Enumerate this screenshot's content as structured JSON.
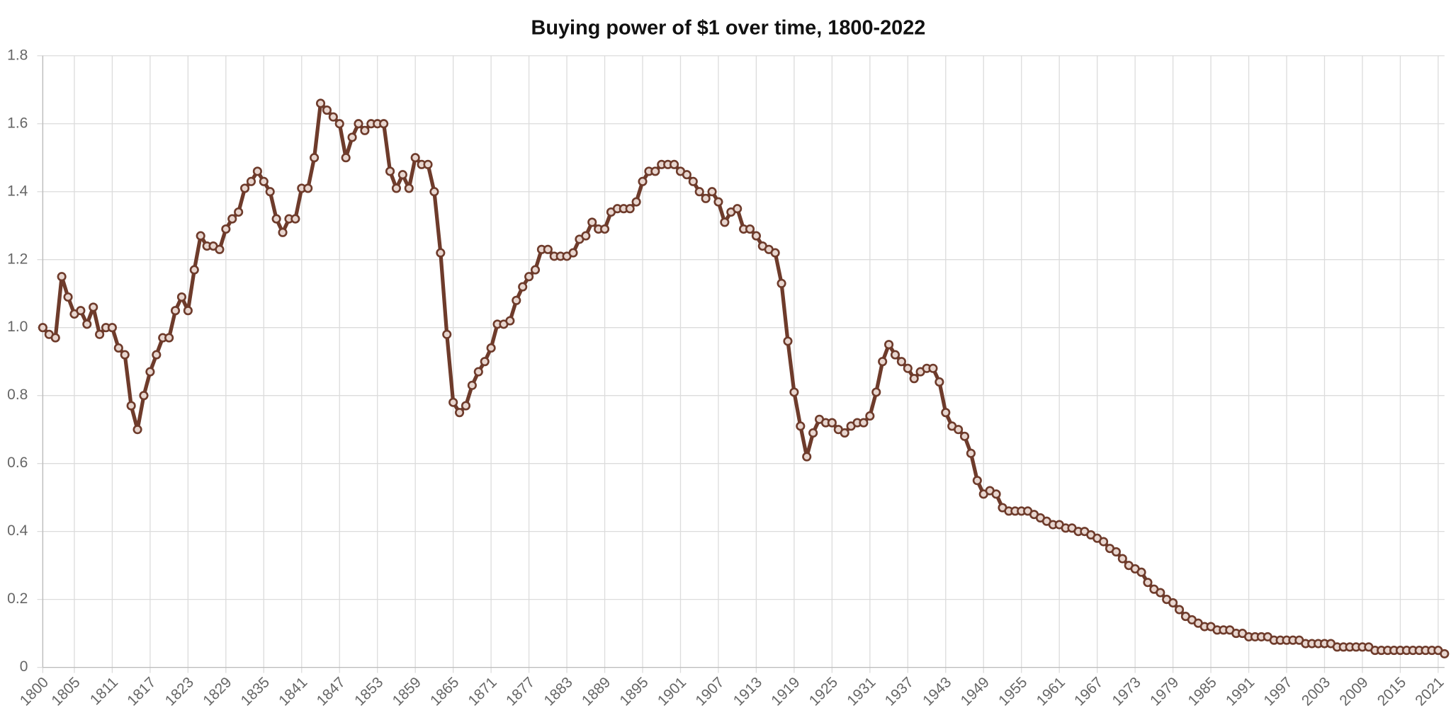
{
  "chart_data": {
    "type": "line",
    "title": "Buying power of $1 over time, 1800-2022",
    "x": [
      1800,
      1801,
      1802,
      1803,
      1804,
      1805,
      1806,
      1807,
      1808,
      1809,
      1810,
      1811,
      1812,
      1813,
      1814,
      1815,
      1816,
      1817,
      1818,
      1819,
      1820,
      1821,
      1822,
      1823,
      1824,
      1825,
      1826,
      1827,
      1828,
      1829,
      1830,
      1831,
      1832,
      1833,
      1834,
      1835,
      1836,
      1837,
      1838,
      1839,
      1840,
      1841,
      1842,
      1843,
      1844,
      1845,
      1846,
      1847,
      1848,
      1849,
      1850,
      1851,
      1852,
      1853,
      1854,
      1855,
      1856,
      1857,
      1858,
      1859,
      1860,
      1861,
      1862,
      1863,
      1864,
      1865,
      1866,
      1867,
      1868,
      1869,
      1870,
      1871,
      1872,
      1873,
      1874,
      1875,
      1876,
      1877,
      1878,
      1879,
      1880,
      1881,
      1882,
      1883,
      1884,
      1885,
      1886,
      1887,
      1888,
      1889,
      1890,
      1891,
      1892,
      1893,
      1894,
      1895,
      1896,
      1897,
      1898,
      1899,
      1900,
      1901,
      1902,
      1903,
      1904,
      1905,
      1906,
      1907,
      1908,
      1909,
      1910,
      1911,
      1912,
      1913,
      1914,
      1915,
      1916,
      1917,
      1918,
      1919,
      1920,
      1921,
      1922,
      1923,
      1924,
      1925,
      1926,
      1927,
      1928,
      1929,
      1930,
      1931,
      1932,
      1933,
      1934,
      1935,
      1936,
      1937,
      1938,
      1939,
      1940,
      1941,
      1942,
      1943,
      1944,
      1945,
      1946,
      1947,
      1948,
      1949,
      1950,
      1951,
      1952,
      1953,
      1954,
      1955,
      1956,
      1957,
      1958,
      1959,
      1960,
      1961,
      1962,
      1963,
      1964,
      1965,
      1966,
      1967,
      1968,
      1969,
      1970,
      1971,
      1972,
      1973,
      1974,
      1975,
      1976,
      1977,
      1978,
      1979,
      1980,
      1981,
      1982,
      1983,
      1984,
      1985,
      1986,
      1987,
      1988,
      1989,
      1990,
      1991,
      1992,
      1993,
      1994,
      1995,
      1996,
      1997,
      1998,
      1999,
      2000,
      2001,
      2002,
      2003,
      2004,
      2005,
      2006,
      2007,
      2008,
      2009,
      2010,
      2011,
      2012,
      2013,
      2014,
      2015,
      2016,
      2017,
      2018,
      2019,
      2020,
      2021,
      2022
    ],
    "series": [
      {
        "name": "Buying power",
        "color": "#6e3b2b",
        "values": [
          1.0,
          0.98,
          0.97,
          1.15,
          1.09,
          1.04,
          1.05,
          1.01,
          1.06,
          0.98,
          1.0,
          1.0,
          0.94,
          0.92,
          0.77,
          0.7,
          0.8,
          0.87,
          0.92,
          0.97,
          0.97,
          1.05,
          1.09,
          1.05,
          1.17,
          1.27,
          1.24,
          1.24,
          1.23,
          1.29,
          1.32,
          1.34,
          1.41,
          1.43,
          1.46,
          1.43,
          1.4,
          1.32,
          1.28,
          1.32,
          1.32,
          1.41,
          1.41,
          1.5,
          1.66,
          1.64,
          1.62,
          1.6,
          1.5,
          1.56,
          1.6,
          1.58,
          1.6,
          1.6,
          1.6,
          1.46,
          1.41,
          1.45,
          1.41,
          1.5,
          1.48,
          1.48,
          1.4,
          1.22,
          0.98,
          0.78,
          0.75,
          0.77,
          0.83,
          0.87,
          0.9,
          0.94,
          1.01,
          1.01,
          1.02,
          1.08,
          1.12,
          1.15,
          1.17,
          1.23,
          1.23,
          1.21,
          1.21,
          1.21,
          1.22,
          1.26,
          1.27,
          1.31,
          1.29,
          1.29,
          1.34,
          1.35,
          1.35,
          1.35,
          1.37,
          1.43,
          1.46,
          1.46,
          1.48,
          1.48,
          1.48,
          1.46,
          1.45,
          1.43,
          1.4,
          1.38,
          1.4,
          1.37,
          1.31,
          1.34,
          1.35,
          1.29,
          1.29,
          1.27,
          1.24,
          1.23,
          1.22,
          1.13,
          0.96,
          0.81,
          0.71,
          0.62,
          0.69,
          0.73,
          0.72,
          0.72,
          0.7,
          0.69,
          0.71,
          0.72,
          0.72,
          0.74,
          0.81,
          0.9,
          0.95,
          0.92,
          0.9,
          0.88,
          0.85,
          0.87,
          0.88,
          0.88,
          0.84,
          0.75,
          0.71,
          0.7,
          0.68,
          0.63,
          0.55,
          0.51,
          0.52,
          0.51,
          0.47,
          0.46,
          0.46,
          0.46,
          0.46,
          0.45,
          0.44,
          0.43,
          0.42,
          0.42,
          0.41,
          0.41,
          0.4,
          0.4,
          0.39,
          0.38,
          0.37,
          0.35,
          0.34,
          0.32,
          0.3,
          0.29,
          0.28,
          0.25,
          0.23,
          0.22,
          0.2,
          0.19,
          0.17,
          0.15,
          0.14,
          0.13,
          0.12,
          0.12,
          0.11,
          0.11,
          0.11,
          0.1,
          0.1,
          0.09,
          0.09,
          0.09,
          0.09,
          0.08,
          0.08,
          0.08,
          0.08,
          0.08,
          0.07,
          0.07,
          0.07,
          0.07,
          0.07,
          0.06,
          0.06,
          0.06,
          0.06,
          0.06,
          0.06,
          0.05,
          0.05,
          0.05,
          0.05,
          0.05,
          0.05,
          0.05,
          0.05,
          0.05,
          0.05,
          0.05,
          0.04
        ]
      }
    ],
    "xlim": [
      1800,
      2022
    ],
    "xticks": [
      1800,
      1805,
      1811,
      1817,
      1823,
      1829,
      1835,
      1841,
      1847,
      1853,
      1859,
      1865,
      1871,
      1877,
      1883,
      1889,
      1895,
      1901,
      1907,
      1913,
      1919,
      1925,
      1931,
      1937,
      1943,
      1949,
      1955,
      1961,
      1967,
      1973,
      1979,
      1985,
      1991,
      1997,
      2003,
      2009,
      2015,
      2021
    ],
    "ylim": [
      0,
      1.8
    ],
    "yticks": [
      0,
      0.2,
      0.4,
      0.6,
      0.8,
      {
        "value": 1,
        "label": "1.0"
      },
      1.2,
      1.4,
      1.6,
      1.8
    ],
    "grid": true
  }
}
